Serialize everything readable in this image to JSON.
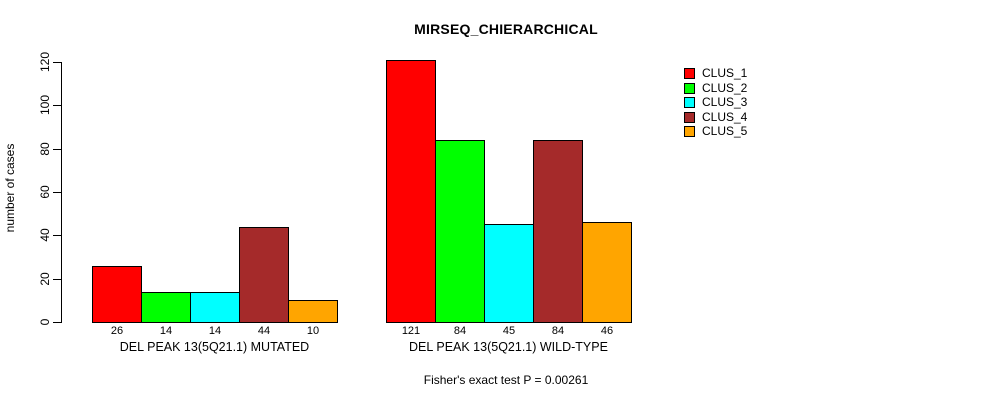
{
  "chart_data": {
    "type": "bar",
    "title": "MIRSEQ_CHIERARCHICAL",
    "ylabel": "number of cases",
    "xlabel": "",
    "annotation": "Fisher's exact test P = 0.00261",
    "ylim": [
      0,
      120
    ],
    "yticks": [
      0,
      20,
      40,
      60,
      80,
      100,
      120
    ],
    "grid": false,
    "legend_position": "top-right",
    "bar_outline_color": "#000000",
    "categories": [
      "DEL PEAK 13(5Q21.1) MUTATED",
      "DEL PEAK 13(5Q21.1) WILD-TYPE"
    ],
    "series": [
      {
        "name": "CLUS_1",
        "color": "#ff0000",
        "values": [
          26,
          121
        ]
      },
      {
        "name": "CLUS_2",
        "color": "#00ff00",
        "values": [
          14,
          84
        ]
      },
      {
        "name": "CLUS_3",
        "color": "#00ffff",
        "values": [
          14,
          45
        ]
      },
      {
        "name": "CLUS_4",
        "color": "#a52a2a",
        "values": [
          44,
          84
        ]
      },
      {
        "name": "CLUS_5",
        "color": "#ffa500",
        "values": [
          10,
          46
        ]
      }
    ]
  }
}
